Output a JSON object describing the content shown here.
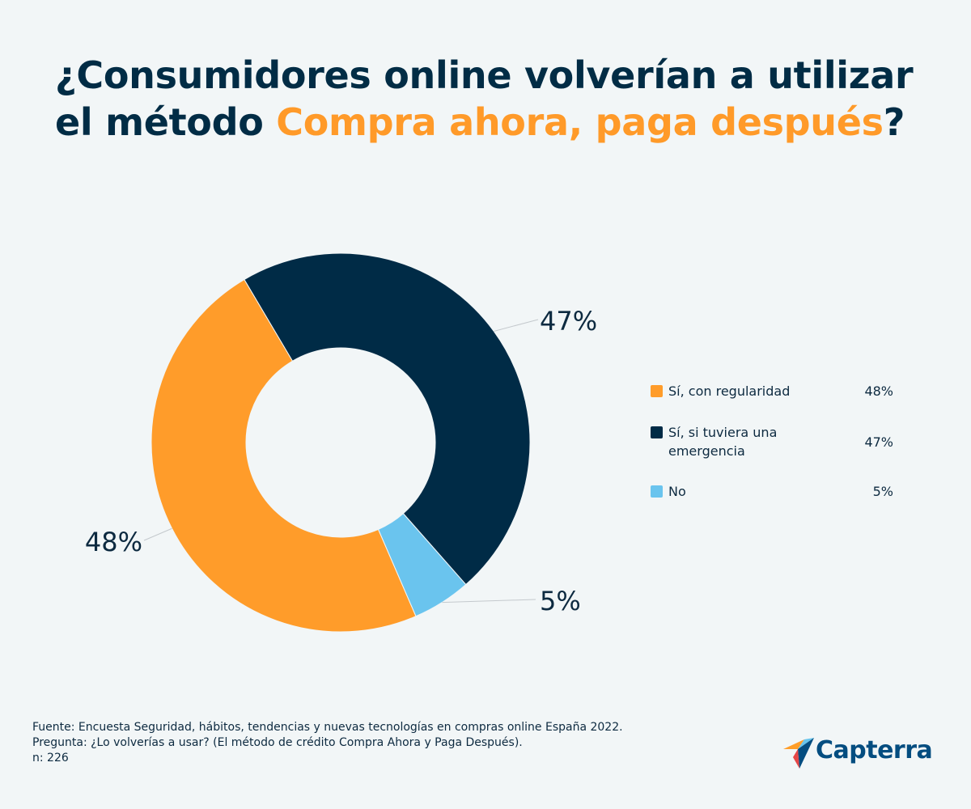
{
  "title": {
    "line1": "¿Consumidores online volverían a utilizar",
    "line2_prefix": "el método ",
    "line2_highlight": "Compra ahora, paga después",
    "line2_suffix": "?"
  },
  "colors": {
    "navy": "#002b46",
    "orange": "#ff9c2a",
    "light_blue": "#6ac4ee",
    "background": "#f2f6f7"
  },
  "chart_data": {
    "type": "pie",
    "variant": "donut",
    "title": "¿Consumidores online volverían a utilizar el método Compra ahora, paga después?",
    "categories": [
      "Sí, con regularidad",
      "Sí, si tuviera una emergencia",
      "No"
    ],
    "values": [
      48,
      47,
      5
    ],
    "colors": [
      "#ff9c2a",
      "#002b46",
      "#6ac4ee"
    ],
    "data_labels": [
      "48%",
      "47%",
      "5%"
    ],
    "legend_position": "right"
  },
  "legend": {
    "items": [
      {
        "label": "Sí, con regularidad",
        "value": "48%",
        "color": "#ff9c2a"
      },
      {
        "label": "Sí, si tuviera una emergencia",
        "value": "47%",
        "color": "#002b46"
      },
      {
        "label": "No",
        "value": "5%",
        "color": "#6ac4ee"
      }
    ]
  },
  "footer": {
    "source": "Fuente: Encuesta Seguridad, hábitos, tendencias y nuevas tecnologías en compras online España 2022.",
    "question": "Pregunta: ¿Lo volverías a usar? (El método de crédito Compra Ahora y Paga Después).",
    "sample": "n: 226"
  },
  "brand": {
    "name": "Capterra",
    "logo_icon": "capterra-arrow-icon"
  }
}
